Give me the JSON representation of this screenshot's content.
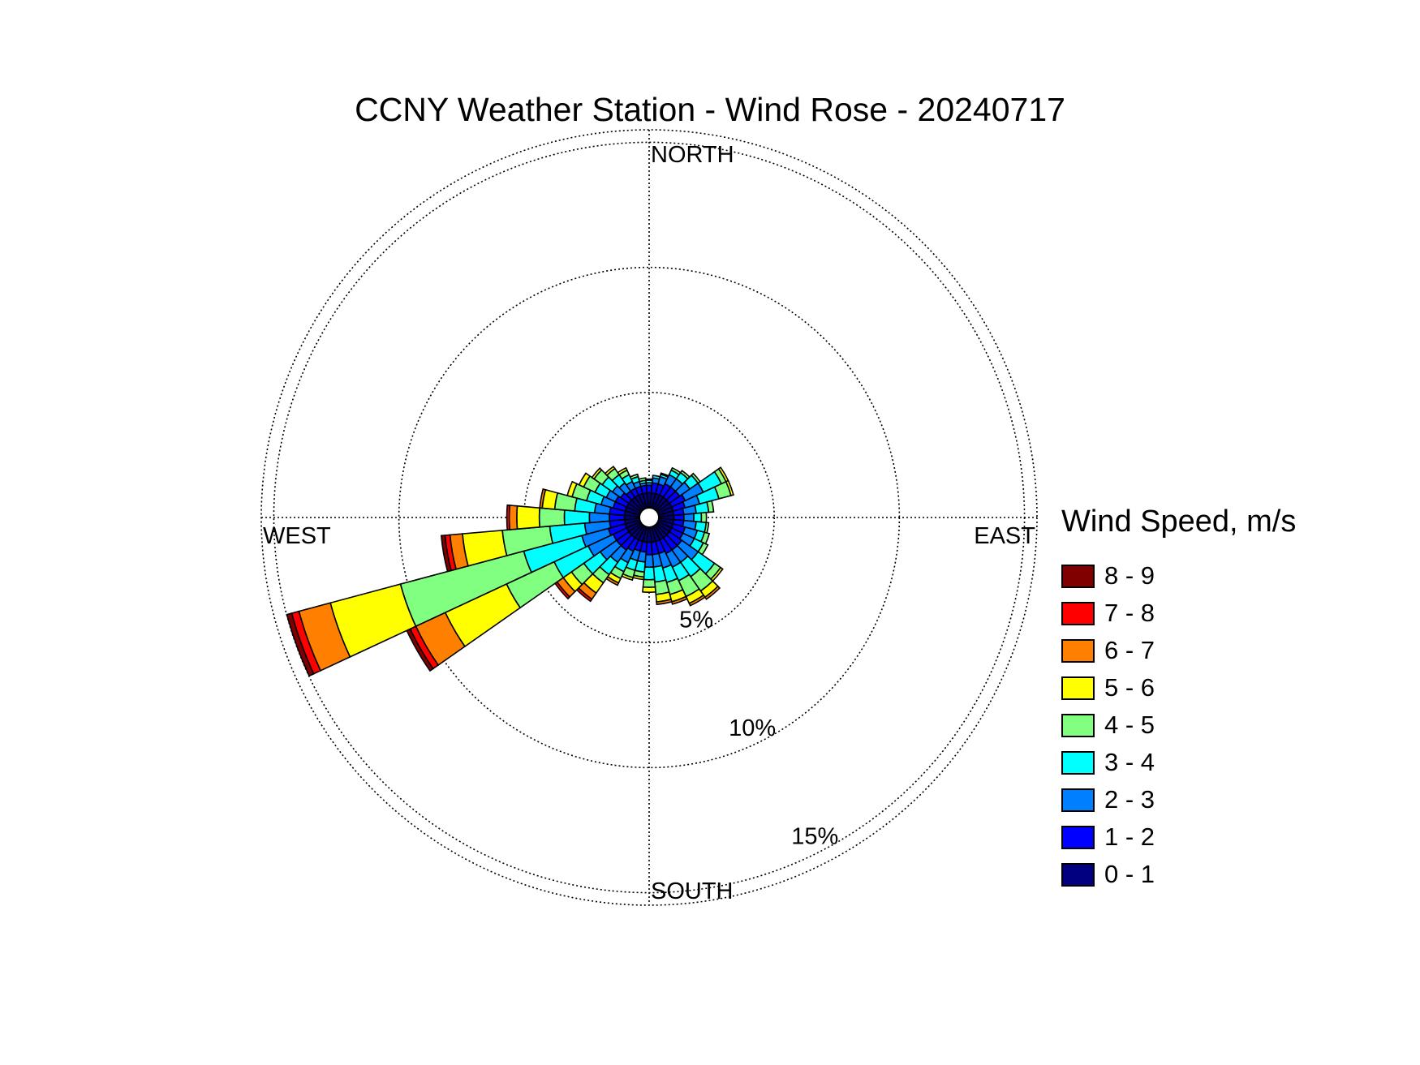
{
  "chart_data": {
    "type": "wind-rose",
    "title": "CCNY Weather Station - Wind Rose - 20240717",
    "direction_labels": {
      "north": "NORTH",
      "east": "EAST",
      "south": "SOUTH",
      "west": "WEST"
    },
    "rings": [
      5,
      10,
      15
    ],
    "ring_labels": [
      "5%",
      "10%",
      "15%"
    ],
    "ring_label_bearing_deg": 150,
    "rmax": 15.5,
    "grid": true,
    "legend": {
      "title": "Wind Speed, m/s",
      "placement": "right",
      "items": [
        {
          "label": "8 - 9",
          "color": "#800000"
        },
        {
          "label": "7 - 8",
          "color": "#ff0000"
        },
        {
          "label": "6 - 7",
          "color": "#ff8000"
        },
        {
          "label": "5 - 6",
          "color": "#ffff00"
        },
        {
          "label": "4 - 5",
          "color": "#80ff80"
        },
        {
          "label": "3 - 4",
          "color": "#00ffff"
        },
        {
          "label": "2 - 3",
          "color": "#0080ff"
        },
        {
          "label": "1 - 2",
          "color": "#0000ff"
        },
        {
          "label": "0 - 1",
          "color": "#000080"
        }
      ]
    },
    "speed_bins": [
      "0 - 1",
      "1 - 2",
      "2 - 3",
      "3 - 4",
      "4 - 5",
      "5 - 6",
      "6 - 7",
      "7 - 8",
      "8 - 9"
    ],
    "sector_width_deg": 10,
    "sectors": [
      {
        "dir": 0,
        "cum": [
          0.6,
          0.9,
          1.0,
          1.1,
          1.15
        ]
      },
      {
        "dir": 10,
        "cum": [
          0.6,
          1.0,
          1.2,
          1.3
        ]
      },
      {
        "dir": 20,
        "cum": [
          0.6,
          1.0,
          1.3,
          1.4,
          1.45
        ]
      },
      {
        "dir": 30,
        "cum": [
          0.6,
          1.1,
          1.5,
          1.7,
          1.8
        ]
      },
      {
        "dir": 40,
        "cum": [
          0.6,
          1.1,
          1.5,
          1.8,
          1.9
        ]
      },
      {
        "dir": 50,
        "cum": [
          0.6,
          1.1,
          1.6,
          2.0,
          2.1
        ]
      },
      {
        "dir": 60,
        "cum": [
          0.6,
          1.2,
          2.0,
          2.8,
          3.0,
          3.1
        ]
      },
      {
        "dir": 70,
        "cum": [
          0.6,
          1.1,
          1.7,
          2.5,
          3.0,
          3.1
        ]
      },
      {
        "dir": 80,
        "cum": [
          0.6,
          1.0,
          1.5,
          2.0,
          2.2
        ]
      },
      {
        "dir": 90,
        "cum": [
          0.6,
          1.0,
          1.4,
          1.7,
          1.9
        ]
      },
      {
        "dir": 100,
        "cum": [
          0.6,
          1.0,
          1.5,
          1.9,
          2.0
        ]
      },
      {
        "dir": 110,
        "cum": [
          0.6,
          1.1,
          1.6,
          1.9,
          2.1
        ]
      },
      {
        "dir": 120,
        "cum": [
          0.6,
          1.1,
          1.6,
          2.0,
          2.2
        ]
      },
      {
        "dir": 130,
        "cum": [
          0.6,
          1.2,
          2.0,
          2.8,
          3.1,
          3.2
        ]
      },
      {
        "dir": 140,
        "cum": [
          0.6,
          1.2,
          1.8,
          2.5,
          3.2,
          3.5,
          3.6
        ]
      },
      {
        "dir": 150,
        "cum": [
          0.6,
          1.2,
          1.8,
          2.4,
          3.1,
          3.4,
          3.5
        ]
      },
      {
        "dir": 160,
        "cum": [
          0.6,
          1.1,
          1.7,
          2.3,
          2.8,
          3.1,
          3.2
        ]
      },
      {
        "dir": 170,
        "cum": [
          0.6,
          1.1,
          1.6,
          2.2,
          2.7,
          3.0,
          3.1
        ]
      },
      {
        "dir": 180,
        "cum": [
          0.6,
          1.1,
          1.6,
          2.1,
          2.4,
          2.6
        ]
      },
      {
        "dir": 190,
        "cum": [
          0.6,
          1.0,
          1.4,
          1.8,
          2.0,
          2.1
        ]
      },
      {
        "dir": 200,
        "cum": [
          0.6,
          1.0,
          1.4,
          1.8,
          2.1,
          2.2
        ]
      },
      {
        "dir": 210,
        "cum": [
          0.6,
          1.1,
          1.6,
          2.0,
          2.3,
          2.5,
          2.6
        ]
      },
      {
        "dir": 220,
        "cum": [
          0.6,
          1.2,
          1.8,
          2.4,
          2.8,
          3.3,
          3.6,
          3.7
        ]
      },
      {
        "dir": 230,
        "cum": [
          0.6,
          1.2,
          2.0,
          2.8,
          3.4,
          3.8,
          4.1,
          4.2
        ]
      },
      {
        "dir": 240,
        "cum": [
          0.6,
          1.2,
          2.3,
          3.8,
          5.9,
          8.6,
          9.9,
          10.15,
          10.3
        ]
      },
      {
        "dir": 250,
        "cum": [
          0.6,
          1.3,
          2.4,
          4.8,
          9.9,
          12.8,
          14.1,
          14.4,
          14.6
        ]
      },
      {
        "dir": 260,
        "cum": [
          0.6,
          1.2,
          2.2,
          3.6,
          5.5,
          7.1,
          7.6,
          7.8,
          7.95
        ]
      },
      {
        "dir": 270,
        "cum": [
          0.6,
          1.2,
          2.0,
          3.0,
          4.0,
          4.9,
          5.2,
          5.3
        ]
      },
      {
        "dir": 280,
        "cum": [
          0.6,
          1.2,
          1.8,
          2.6,
          3.4,
          3.9,
          4.0
        ]
      },
      {
        "dir": 290,
        "cum": [
          0.6,
          1.1,
          1.6,
          2.2,
          2.8,
          3.0
        ]
      },
      {
        "dir": 300,
        "cum": [
          0.6,
          1.1,
          1.5,
          2.0,
          2.5,
          2.7
        ]
      },
      {
        "dir": 310,
        "cum": [
          0.6,
          1.0,
          1.4,
          1.9,
          2.3,
          2.4
        ]
      },
      {
        "dir": 320,
        "cum": [
          0.6,
          0.9,
          1.3,
          1.7,
          2.0,
          2.1
        ]
      },
      {
        "dir": 330,
        "cum": [
          0.6,
          0.9,
          1.2,
          1.5,
          1.7,
          1.8
        ]
      },
      {
        "dir": 340,
        "cum": [
          0.6,
          0.9,
          1.1,
          1.3,
          1.4
        ]
      },
      {
        "dir": 350,
        "cum": [
          0.6,
          0.9,
          1.0,
          1.1,
          1.2
        ]
      }
    ]
  }
}
